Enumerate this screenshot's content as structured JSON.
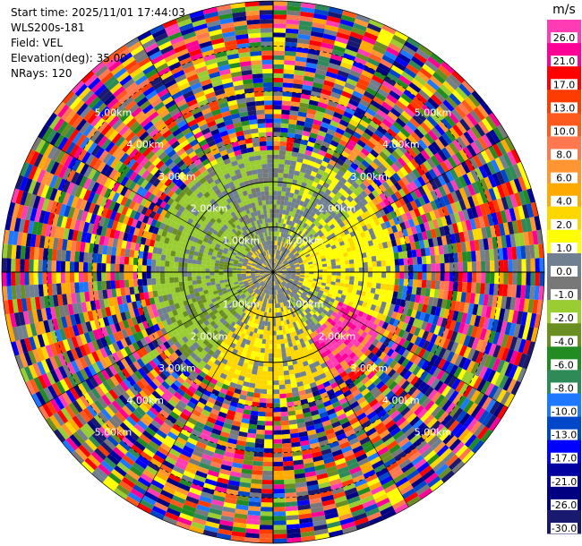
{
  "info": {
    "start_time": "Start time: 2025/11/01 17:44:03",
    "site": "WLS200s-181",
    "field": "Field: VEL",
    "elevation": "Elevation(deg): 35.00",
    "nrays": "NRays: 120"
  },
  "chart_data": {
    "type": "heatmap",
    "subtype": "polar PPI radar scan",
    "field": "VEL",
    "elevation_deg": 35.0,
    "n_rays": 120,
    "max_range_km": 6.0,
    "range_ring_labels": [
      "1.00km",
      "2.00km",
      "3.00km",
      "4.00km",
      "5.00km"
    ],
    "colorbar": {
      "unit": "m/s",
      "tick_labels": [
        "26.0",
        "21.0",
        "17.0",
        "13.0",
        "10.0",
        "8.0",
        "6.0",
        "4.0",
        "2.0",
        "1.0",
        "0.0",
        "-1.0",
        "-2.0",
        "-4.0",
        "-6.0",
        "-8.0",
        "-10.0",
        "-13.0",
        "-17.0",
        "-21.0",
        "-26.0",
        "-30.0"
      ],
      "colors": [
        "#ff3cb4",
        "#ff0096",
        "#ff0000",
        "#ff3c00",
        "#ff5a1e",
        "#ff7850",
        "#ff9632",
        "#ffaa00",
        "#ffd700",
        "#ffff00",
        "#708090",
        "#787878",
        "#9acd32",
        "#6b8e23",
        "#228b22",
        "#2e8b57",
        "#1e78ff",
        "#0046c8",
        "#0000ff",
        "#0000a0",
        "#000080",
        "#191970"
      ]
    },
    "pattern_notes": "Near-field (< ~2.5 km) coherent: gray/yellow near origin, olive-green negative velocities to the west, yellow positive to the east, magenta/orange patches to the southeast; beyond ~2.5 km random noise across all colors."
  }
}
